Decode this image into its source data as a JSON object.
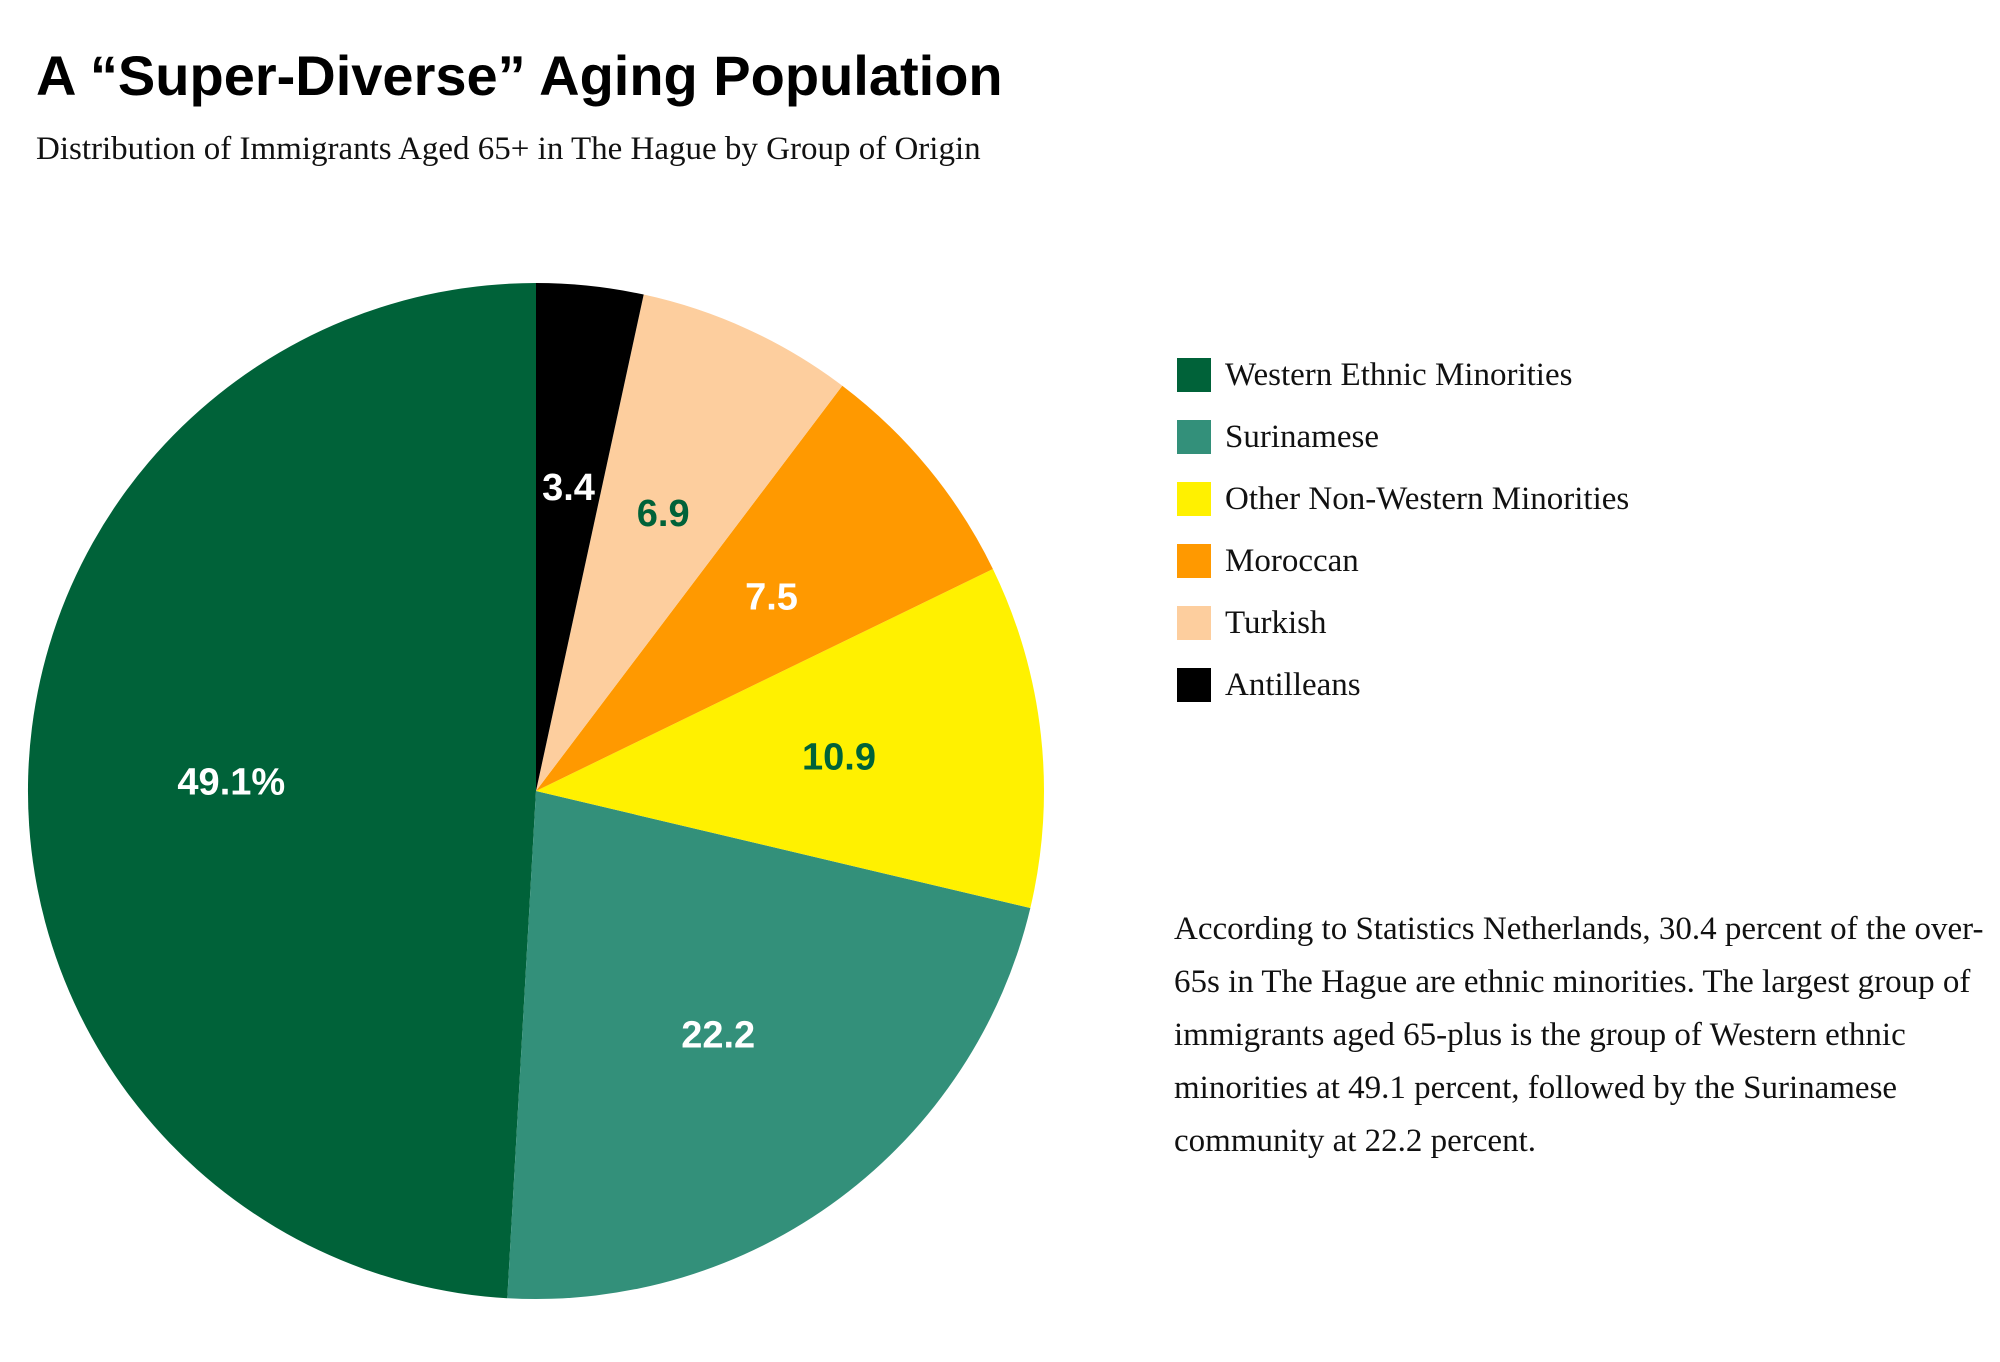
{
  "header": {
    "title": "A “Super-Diverse” Aging Population",
    "subtitle": "Distribution of Immigrants Aged 65+ in The Hague by Group of Origin"
  },
  "chart_data": {
    "type": "pie",
    "title": "A “Super-Diverse” Aging Population",
    "subtitle": "Distribution of Immigrants Aged 65+ in The Hague by Group of Origin",
    "legend_position": "right",
    "slices": [
      {
        "name": "Western Ethnic Minorities",
        "value": 49.1,
        "label": "49.1%",
        "color": "#006239",
        "label_color": "#ffffff"
      },
      {
        "name": "Surinamese",
        "value": 22.2,
        "label": "22.2",
        "color": "#33907A",
        "label_color": "#ffffff"
      },
      {
        "name": "Other Non-Western Minorities",
        "value": 10.9,
        "label": "10.9",
        "color": "#FFF100",
        "label_color": "#006239"
      },
      {
        "name": "Moroccan",
        "value": 7.5,
        "label": "7.5",
        "color": "#FF9900",
        "label_color": "#ffffff"
      },
      {
        "name": "Turkish",
        "value": 6.9,
        "label": "6.9",
        "color": "#FDCE9E",
        "label_color": "#006239"
      },
      {
        "name": "Antilleans",
        "value": 3.4,
        "label": "3.4",
        "color": "#000000",
        "label_color": "#ffffff"
      }
    ]
  },
  "legend": {
    "items": [
      {
        "label": "Western Ethnic Minorities",
        "color": "#006239"
      },
      {
        "label": "Surinamese",
        "color": "#33907A"
      },
      {
        "label": "Other Non-Western Minorities",
        "color": "#FFF100"
      },
      {
        "label": "Moroccan",
        "color": "#FF9900"
      },
      {
        "label": "Turkish",
        "color": "#FDCE9E"
      },
      {
        "label": "Antilleans",
        "color": "#000000"
      }
    ]
  },
  "note": {
    "text": "According to Statistics Netherlands, 30.4 percent of the over-65s in The Hague are ethnic minorities. The largest group of immigrants aged 65-plus is the group of Western ethnic minorities at 49.1 percent, followed by the Surinamese community at 22.2 percent."
  }
}
